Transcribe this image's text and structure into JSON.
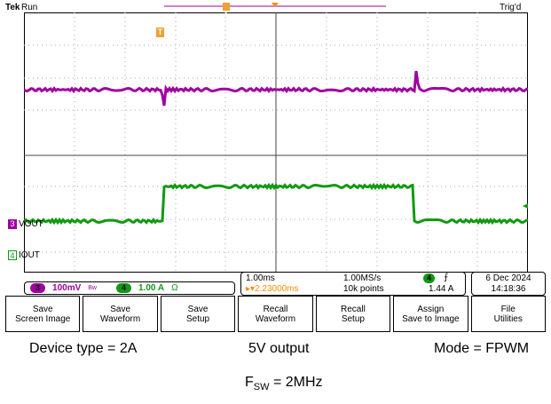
{
  "colors": {
    "ch3": "#a000a0",
    "ch4": "#119911",
    "trigger": "#ff8c00",
    "marker": "#f0a030"
  },
  "topbar": {
    "brand": "Tek",
    "status": "Run",
    "trigger_status": "Trig'd"
  },
  "markers": {
    "top_T": "T",
    "pos_T": "T"
  },
  "channels": {
    "ch3": {
      "number": "3",
      "label": "VOUT"
    },
    "ch4": {
      "number": "4",
      "label": "IOUT"
    }
  },
  "readout_left": {
    "ch3_num": "3",
    "ch3_scale": "100mV",
    "ch3_bw": "Bw",
    "ch4_num": "4",
    "ch4_scale": "1.00 A",
    "ch4_unit": "Ω"
  },
  "readout_mid": {
    "timebase": "1.00ms",
    "sample_rate": "1.00MS/s",
    "trig_pos": "▸▾2.23000ms",
    "record": "10k points",
    "trig_src": "4",
    "trig_slope": "⨍",
    "trig_level": "1.44 A"
  },
  "readout_date": {
    "date": "6 Dec 2024",
    "time": "14:18:36"
  },
  "menu": [
    {
      "line1": "Save",
      "line2": "Screen Image"
    },
    {
      "line1": "Save",
      "line2": "Waveform"
    },
    {
      "line1": "Save",
      "line2": "Setup"
    },
    {
      "line1": "Recall",
      "line2": "Waveform"
    },
    {
      "line1": "Recall",
      "line2": "Setup"
    },
    {
      "line1": "Assign",
      "line2": "Save to Image"
    },
    {
      "line1": "File",
      "line2": "Utilities"
    }
  ],
  "captions": {
    "device": "Device type = 2A",
    "output": "5V output",
    "mode": "Mode = FPWM",
    "fsw_prefix": "F",
    "fsw_sub": "SW",
    "fsw_suffix": " = 2MHz"
  }
}
